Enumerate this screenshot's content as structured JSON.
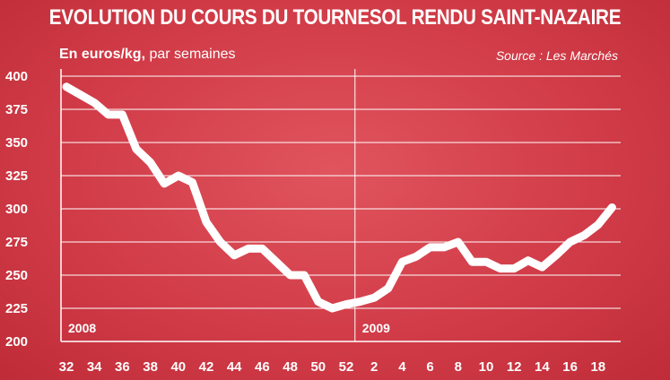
{
  "header": {
    "title": "EVOLUTION DU COURS DU TOURNESOL RENDU SAINT-NAZAIRE",
    "unit": "En euros/kg,",
    "period": " par semaines",
    "source": "Source : Les Marchés"
  },
  "colors": {
    "background": "#d13c48",
    "line": "#ffffff",
    "grid": "#ffffff",
    "text": "#ffffff"
  },
  "chart_data": {
    "type": "line",
    "title": "EVOLUTION DU COURS DU TOURNESOL RENDU SAINT-NAZAIRE",
    "ylabel": "En euros/kg, par semaines",
    "ylim": [
      200,
      400
    ],
    "yticks": [
      200,
      225,
      250,
      275,
      300,
      325,
      350,
      375,
      400
    ],
    "xtick_labels": [
      "32",
      "34",
      "36",
      "38",
      "40",
      "42",
      "44",
      "46",
      "48",
      "50",
      "52",
      "2",
      "4",
      "6",
      "8",
      "10",
      "12",
      "14",
      "16",
      "18"
    ],
    "year_labels": [
      "2008",
      "2009"
    ],
    "grid": true,
    "x": [
      "2008-32",
      "2008-33",
      "2008-34",
      "2008-35",
      "2008-36",
      "2008-37",
      "2008-38",
      "2008-39",
      "2008-40",
      "2008-41",
      "2008-42",
      "2008-43",
      "2008-44",
      "2008-45",
      "2008-46",
      "2008-47",
      "2008-48",
      "2008-49",
      "2008-50",
      "2008-51",
      "2008-52",
      "2009-1",
      "2009-2",
      "2009-3",
      "2009-4",
      "2009-5",
      "2009-6",
      "2009-7",
      "2009-8",
      "2009-9",
      "2009-10",
      "2009-11",
      "2009-12",
      "2009-13",
      "2009-14",
      "2009-15",
      "2009-16",
      "2009-17",
      "2009-18",
      "2009-19"
    ],
    "series": [
      {
        "values": [
          392,
          386,
          380,
          371,
          371,
          345,
          335,
          319,
          325,
          320,
          290,
          275,
          265,
          270,
          270,
          260,
          250,
          250,
          230,
          225,
          228,
          230,
          233,
          240,
          260,
          264,
          271,
          271,
          275,
          260,
          260,
          255,
          255,
          261,
          256,
          265,
          275,
          280,
          288,
          301
        ]
      }
    ]
  }
}
